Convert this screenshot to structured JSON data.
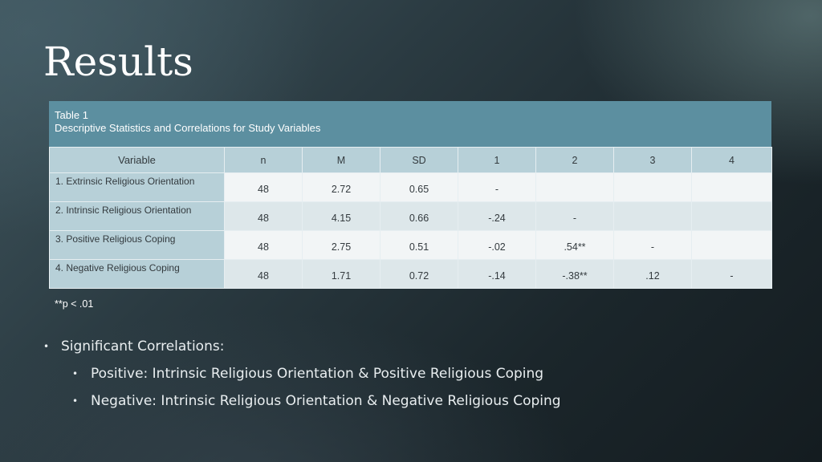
{
  "slide": {
    "title": "Results"
  },
  "table": {
    "caption_line1": "Table 1",
    "caption_line2": "Descriptive Statistics and Correlations for Study Variables",
    "headers": [
      "Variable",
      "n",
      "M",
      "SD",
      "1",
      "2",
      "3",
      "4"
    ],
    "rows": [
      {
        "variable": "1. Extrinsic Religious Orientation",
        "n": "48",
        "m": "2.72",
        "sd": "0.65",
        "c1": "-",
        "c2": "",
        "c3": "",
        "c4": ""
      },
      {
        "variable": "2. Intrinsic Religious Orientation",
        "n": "48",
        "m": "4.15",
        "sd": "0.66",
        "c1": "-.24",
        "c2": "-",
        "c3": "",
        "c4": ""
      },
      {
        "variable": "3. Positive Religious Coping",
        "n": "48",
        "m": "2.75",
        "sd": "0.51",
        "c1": "-.02",
        "c2": ".54**",
        "c3": "-",
        "c4": ""
      },
      {
        "variable": "4. Negative Religious Coping",
        "n": "48",
        "m": "1.71",
        "sd": "0.72",
        "c1": "-.14",
        "c2": "-.38**",
        "c3": ".12",
        "c4": "-"
      }
    ],
    "note": "**p < .01"
  },
  "bullets": {
    "main": "Significant Correlations:",
    "sub": [
      "Positive: Intrinsic Religious Orientation & Positive Religious Coping",
      "Negative: Intrinsic Religious Orientation & Negative Religious Coping"
    ]
  }
}
